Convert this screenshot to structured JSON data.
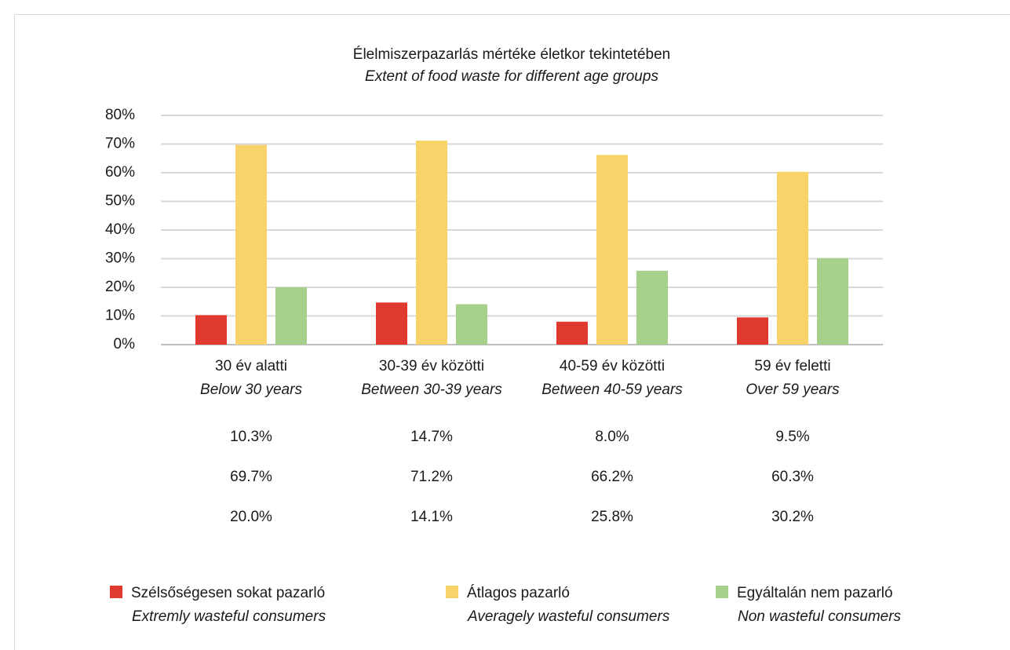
{
  "chart_data": {
    "type": "bar",
    "title": "Élelmiszerpazarlás mértéke életkor tekintetében",
    "subtitle": "Extent of food waste for different age groups",
    "categories": [
      "30 év alatti",
      "30-39 év közötti",
      "40-59 év közötti",
      "59 év feletti"
    ],
    "category_subtitles": [
      "Below 30 years",
      "Between 30-39 years",
      "Between 40-59 years",
      "Over 59 years"
    ],
    "series": [
      {
        "name": "Szélsőségesen sokat pazarló",
        "subtitle": "Extremly wasteful consumers",
        "color": "#e03a30",
        "values": [
          10.3,
          14.7,
          8.0,
          9.5
        ],
        "value_labels": [
          "10.3%",
          "14.7%",
          "8.0%",
          "9.5%"
        ]
      },
      {
        "name": "Átlagos pazarló",
        "subtitle": "Averagely wasteful consumers",
        "color": "#f7d36a",
        "values": [
          69.7,
          71.2,
          66.2,
          60.3
        ],
        "value_labels": [
          "69.7%",
          "71.2%",
          "66.2%",
          "60.3%"
        ]
      },
      {
        "name": "Egyáltalán nem pazarló",
        "subtitle": "Non wasteful consumers",
        "color": "#a8d08d",
        "values": [
          20.0,
          14.1,
          25.8,
          30.2
        ],
        "value_labels": [
          "20.0%",
          "14.1%",
          "25.8%",
          "30.2%"
        ]
      }
    ],
    "ylim": [
      0,
      80
    ],
    "yticks": [
      {
        "value": 0,
        "label": "0%"
      },
      {
        "value": 10,
        "label": "10%"
      },
      {
        "value": 20,
        "label": "20%"
      },
      {
        "value": 30,
        "label": "30%"
      },
      {
        "value": 40,
        "label": "40%"
      },
      {
        "value": 50,
        "label": "50%"
      },
      {
        "value": 60,
        "label": "60%"
      },
      {
        "value": 70,
        "label": "70%"
      },
      {
        "value": 80,
        "label": "80%"
      }
    ],
    "grid": true,
    "legend": "bottom"
  }
}
